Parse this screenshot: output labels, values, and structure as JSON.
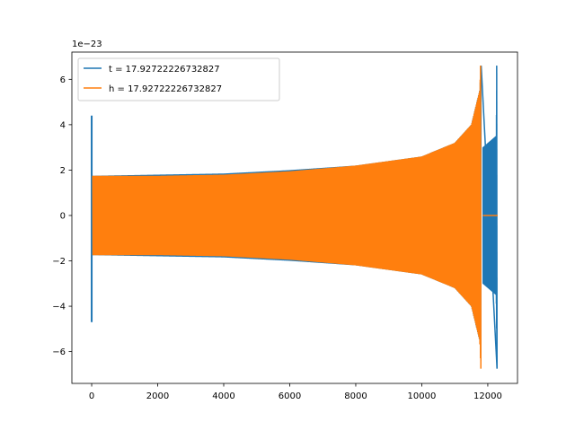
{
  "chart_data": {
    "type": "line",
    "title": "",
    "xlabel": "",
    "ylabel": "",
    "y_scale_offset": "1e−23",
    "xlim": [
      -600,
      12900
    ],
    "ylim": [
      -7.4,
      7.2
    ],
    "xticks": [
      0,
      2000,
      4000,
      6000,
      8000,
      10000,
      12000
    ],
    "yticks": [
      -6,
      -4,
      -2,
      0,
      2,
      4,
      6
    ],
    "legend_position": "upper-left",
    "grid": false,
    "series": [
      {
        "name": "t = 17.92722226732827",
        "color": "#1f77b4",
        "envelope": [
          {
            "x": 0,
            "y": 4.4
          },
          {
            "x": 0,
            "y": -4.7
          },
          {
            "x": 30,
            "y": 1.75
          },
          {
            "x": 2000,
            "y": 1.8
          },
          {
            "x": 4000,
            "y": 1.85
          },
          {
            "x": 6000,
            "y": 2.0
          },
          {
            "x": 8000,
            "y": 2.2
          },
          {
            "x": 10000,
            "y": 2.6
          },
          {
            "x": 11000,
            "y": 3.2
          },
          {
            "x": 11500,
            "y": 4.0
          },
          {
            "x": 11750,
            "y": 5.5
          },
          {
            "x": 11800,
            "y": 6.6
          },
          {
            "x": 11850,
            "y": 3.0
          },
          {
            "x": 12250,
            "y": 3.5
          },
          {
            "x": 12270,
            "y": 6.6
          },
          {
            "x": 12280,
            "y": -6.75
          }
        ]
      },
      {
        "name": "h = 17.92722226732827",
        "color": "#ff7f0e",
        "envelope": [
          {
            "x": 0,
            "y": 1.7
          },
          {
            "x": 2000,
            "y": 1.75
          },
          {
            "x": 4000,
            "y": 1.8
          },
          {
            "x": 6000,
            "y": 1.95
          },
          {
            "x": 8000,
            "y": 2.2
          },
          {
            "x": 10000,
            "y": 2.6
          },
          {
            "x": 11000,
            "y": 3.2
          },
          {
            "x": 11500,
            "y": 4.0
          },
          {
            "x": 11750,
            "y": 5.5
          },
          {
            "x": 11780,
            "y": 6.6
          },
          {
            "x": 11790,
            "y": -6.75
          },
          {
            "x": 11850,
            "y": 0.0
          },
          {
            "x": 12300,
            "y": 0.0
          }
        ]
      }
    ]
  }
}
